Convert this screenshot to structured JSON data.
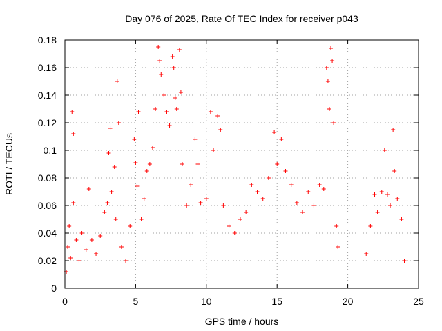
{
  "chart_data": {
    "type": "scatter",
    "title": "Day 076 of 2025, Rate Of TEC Index for receiver p043",
    "xlabel": "GPS time / hours",
    "ylabel": "ROTI / TECUs",
    "xlim": [
      0,
      25
    ],
    "ylim": [
      0,
      0.18
    ],
    "x_ticks": [
      0,
      5,
      10,
      15,
      20,
      25
    ],
    "x_tick_labels": [
      "0",
      "5",
      "10",
      "15",
      "20",
      "25"
    ],
    "y_ticks": [
      0,
      0.02,
      0.04,
      0.06,
      0.08,
      0.1,
      0.12,
      0.14,
      0.16,
      0.18
    ],
    "y_tick_labels": [
      "0",
      "0.02",
      "0.04",
      "0.06",
      "0.08",
      "0.1",
      "0.12",
      "0.14",
      "0.16",
      "0.18"
    ],
    "grid": true,
    "marker": "+",
    "color": "#ff0000",
    "series": [
      {
        "points": [
          [
            0.1,
            0.012
          ],
          [
            0.2,
            0.03
          ],
          [
            0.3,
            0.045
          ],
          [
            0.4,
            0.022
          ],
          [
            0.5,
            0.128
          ],
          [
            0.6,
            0.112
          ],
          [
            0.6,
            0.062
          ],
          [
            0.8,
            0.035
          ],
          [
            1.0,
            0.02
          ],
          [
            1.2,
            0.04
          ],
          [
            1.5,
            0.028
          ],
          [
            1.7,
            0.072
          ],
          [
            1.9,
            0.035
          ],
          [
            2.2,
            0.025
          ],
          [
            2.5,
            0.038
          ],
          [
            2.8,
            0.055
          ],
          [
            3.0,
            0.062
          ],
          [
            3.1,
            0.098
          ],
          [
            3.2,
            0.116
          ],
          [
            3.3,
            0.07
          ],
          [
            3.5,
            0.088
          ],
          [
            3.6,
            0.05
          ],
          [
            3.7,
            0.15
          ],
          [
            3.8,
            0.12
          ],
          [
            4.0,
            0.03
          ],
          [
            4.3,
            0.02
          ],
          [
            4.6,
            0.045
          ],
          [
            4.9,
            0.108
          ],
          [
            5.0,
            0.091
          ],
          [
            5.1,
            0.074
          ],
          [
            5.2,
            0.128
          ],
          [
            5.4,
            0.05
          ],
          [
            5.6,
            0.065
          ],
          [
            5.8,
            0.085
          ],
          [
            6.0,
            0.09
          ],
          [
            6.2,
            0.102
          ],
          [
            6.4,
            0.13
          ],
          [
            6.6,
            0.175
          ],
          [
            6.7,
            0.165
          ],
          [
            6.8,
            0.155
          ],
          [
            7.0,
            0.14
          ],
          [
            7.2,
            0.128
          ],
          [
            7.4,
            0.118
          ],
          [
            7.6,
            0.168
          ],
          [
            7.7,
            0.16
          ],
          [
            7.8,
            0.138
          ],
          [
            7.9,
            0.13
          ],
          [
            8.1,
            0.173
          ],
          [
            8.2,
            0.142
          ],
          [
            8.3,
            0.09
          ],
          [
            8.6,
            0.06
          ],
          [
            8.9,
            0.075
          ],
          [
            9.2,
            0.108
          ],
          [
            9.4,
            0.09
          ],
          [
            9.6,
            0.062
          ],
          [
            10.0,
            0.065
          ],
          [
            10.3,
            0.128
          ],
          [
            10.5,
            0.1
          ],
          [
            10.8,
            0.125
          ],
          [
            11.0,
            0.115
          ],
          [
            11.2,
            0.06
          ],
          [
            11.6,
            0.045
          ],
          [
            12.0,
            0.04
          ],
          [
            12.4,
            0.05
          ],
          [
            12.8,
            0.055
          ],
          [
            13.2,
            0.075
          ],
          [
            13.6,
            0.07
          ],
          [
            14.0,
            0.065
          ],
          [
            14.4,
            0.08
          ],
          [
            14.8,
            0.113
          ],
          [
            15.0,
            0.09
          ],
          [
            15.3,
            0.108
          ],
          [
            15.6,
            0.085
          ],
          [
            16.0,
            0.075
          ],
          [
            16.4,
            0.062
          ],
          [
            16.8,
            0.055
          ],
          [
            17.2,
            0.07
          ],
          [
            17.6,
            0.06
          ],
          [
            18.0,
            0.075
          ],
          [
            18.3,
            0.072
          ],
          [
            18.5,
            0.16
          ],
          [
            18.6,
            0.15
          ],
          [
            18.7,
            0.13
          ],
          [
            18.8,
            0.174
          ],
          [
            18.9,
            0.165
          ],
          [
            19.0,
            0.12
          ],
          [
            19.2,
            0.045
          ],
          [
            19.3,
            0.03
          ],
          [
            21.3,
            0.025
          ],
          [
            21.6,
            0.045
          ],
          [
            21.9,
            0.068
          ],
          [
            22.1,
            0.055
          ],
          [
            22.4,
            0.07
          ],
          [
            22.6,
            0.1
          ],
          [
            22.8,
            0.068
          ],
          [
            23.0,
            0.06
          ],
          [
            23.2,
            0.115
          ],
          [
            23.3,
            0.085
          ],
          [
            23.5,
            0.065
          ],
          [
            23.8,
            0.05
          ],
          [
            24.0,
            0.02
          ]
        ]
      }
    ]
  }
}
